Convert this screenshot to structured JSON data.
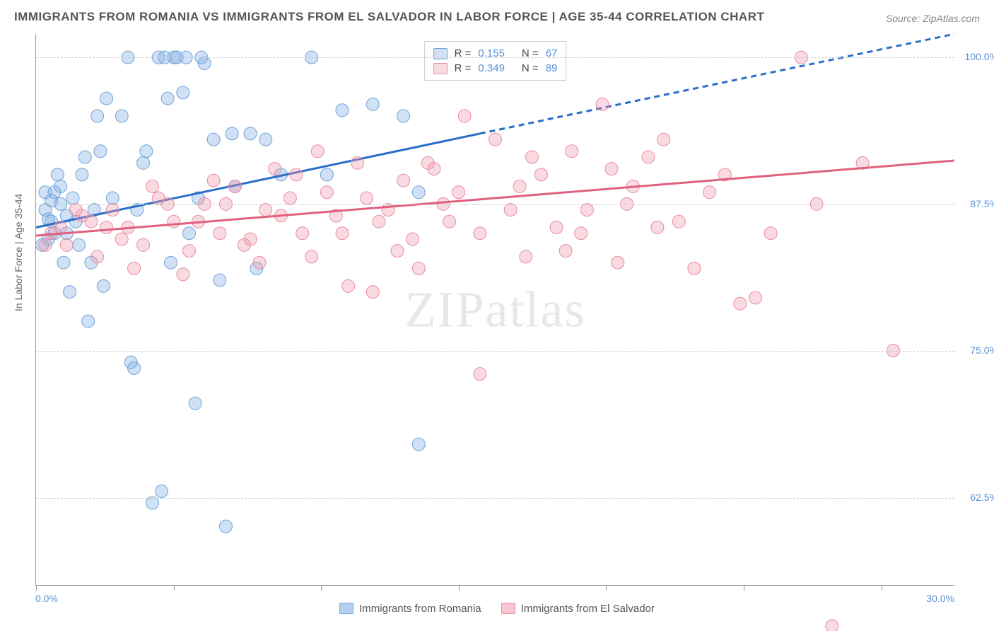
{
  "title": "IMMIGRANTS FROM ROMANIA VS IMMIGRANTS FROM EL SALVADOR IN LABOR FORCE | AGE 35-44 CORRELATION CHART",
  "source": "Source: ZipAtlas.com",
  "watermark": "ZIPatlas",
  "chart": {
    "type": "scatter",
    "background_color": "#ffffff",
    "grid_color": "#cccccc",
    "axis_color": "#999999",
    "tick_label_color": "#5b8fd6",
    "ylabel": "In Labor Force | Age 35-44",
    "ylabel_fontsize": 14,
    "xlim": [
      0.0,
      30.0
    ],
    "ylim": [
      55.0,
      102.0
    ],
    "yticks": [
      62.5,
      75.0,
      87.5,
      100.0
    ],
    "ytick_labels": [
      "62.5%",
      "75.0%",
      "87.5%",
      "100.0%"
    ],
    "xtick_labels": {
      "min": "0.0%",
      "max": "30.0%"
    },
    "bottom_tick_positions_pct": [
      0,
      15,
      31,
      46,
      62,
      77,
      92
    ],
    "series": [
      {
        "name": "Immigrants from Romania",
        "legend_key": "romania",
        "color_fill": "rgba(120,170,225,0.35)",
        "color_stroke": "#6fa3d8",
        "marker_radius": 9,
        "trend": {
          "color": "#2a6ec9",
          "width": 3,
          "x1": 0,
          "y1": 85.5,
          "x2_solid": 14.5,
          "y2_solid": 93.5,
          "x2_dash": 30.0,
          "y2_dash": 102.0
        },
        "R": 0.155,
        "N": 67,
        "points": [
          [
            0.3,
            87.0
          ],
          [
            0.5,
            86.0
          ],
          [
            0.8,
            87.5
          ],
          [
            1.0,
            85.0
          ],
          [
            1.2,
            88.0
          ],
          [
            0.4,
            84.5
          ],
          [
            0.6,
            88.5
          ],
          [
            1.5,
            90.0
          ],
          [
            1.8,
            82.5
          ],
          [
            2.0,
            95.0
          ],
          [
            2.2,
            80.5
          ],
          [
            2.5,
            88.0
          ],
          [
            3.0,
            100.0
          ],
          [
            3.2,
            73.5
          ],
          [
            3.5,
            91.0
          ],
          [
            4.0,
            100.0
          ],
          [
            4.2,
            100.0
          ],
          [
            4.5,
            100.0
          ],
          [
            4.8,
            97.0
          ],
          [
            4.6,
            100.0
          ],
          [
            4.9,
            100.0
          ],
          [
            5.0,
            85.0
          ],
          [
            5.2,
            70.5
          ],
          [
            5.5,
            99.5
          ],
          [
            5.8,
            93.0
          ],
          [
            6.0,
            81.0
          ],
          [
            6.2,
            60.0
          ],
          [
            6.5,
            89.0
          ],
          [
            7.0,
            93.5
          ],
          [
            7.2,
            82.0
          ],
          [
            3.8,
            62.0
          ],
          [
            4.1,
            63.0
          ],
          [
            2.8,
            95.0
          ],
          [
            1.1,
            80.0
          ],
          [
            0.9,
            82.5
          ],
          [
            0.7,
            90.0
          ],
          [
            1.3,
            86.0
          ],
          [
            1.6,
            91.5
          ],
          [
            3.3,
            87.0
          ],
          [
            5.3,
            88.0
          ],
          [
            7.5,
            93.0
          ],
          [
            8.0,
            90.0
          ],
          [
            5.4,
            100.0
          ],
          [
            4.3,
            96.5
          ],
          [
            9.0,
            100.0
          ],
          [
            9.5,
            90.0
          ],
          [
            10.0,
            95.5
          ],
          [
            11.0,
            96.0
          ],
          [
            12.0,
            95.0
          ],
          [
            12.5,
            67.0
          ],
          [
            12.5,
            88.5
          ],
          [
            2.3,
            96.5
          ],
          [
            1.7,
            77.5
          ],
          [
            3.6,
            92.0
          ],
          [
            6.4,
            93.5
          ],
          [
            0.2,
            84.0
          ],
          [
            0.5,
            87.8
          ],
          [
            0.8,
            89.0
          ],
          [
            1.0,
            86.5
          ],
          [
            1.4,
            84.0
          ],
          [
            1.9,
            87.0
          ],
          [
            0.3,
            88.5
          ],
          [
            0.6,
            85.0
          ],
          [
            4.4,
            82.5
          ],
          [
            3.1,
            74.0
          ],
          [
            2.1,
            92.0
          ],
          [
            0.4,
            86.2
          ]
        ]
      },
      {
        "name": "Immigrants from El Salvador",
        "legend_key": "elsalvador",
        "color_fill": "rgba(240,150,170,0.35)",
        "color_stroke": "#e88ba5",
        "marker_radius": 9,
        "trend": {
          "color": "#e0607f",
          "width": 3,
          "x1": 0,
          "y1": 84.8,
          "x2_solid": 30.0,
          "y2_solid": 91.2,
          "x2_dash": 30.0,
          "y2_dash": 91.2
        },
        "R": 0.349,
        "N": 89,
        "points": [
          [
            0.5,
            85.0
          ],
          [
            1.0,
            84.0
          ],
          [
            1.5,
            86.5
          ],
          [
            2.0,
            83.0
          ],
          [
            2.5,
            87.0
          ],
          [
            3.0,
            85.5
          ],
          [
            3.5,
            84.0
          ],
          [
            4.0,
            88.0
          ],
          [
            4.5,
            86.0
          ],
          [
            5.0,
            83.5
          ],
          [
            5.5,
            87.5
          ],
          [
            6.0,
            85.0
          ],
          [
            6.5,
            89.0
          ],
          [
            7.0,
            84.5
          ],
          [
            7.5,
            87.0
          ],
          [
            8.0,
            86.5
          ],
          [
            8.5,
            90.0
          ],
          [
            9.0,
            83.0
          ],
          [
            9.5,
            88.5
          ],
          [
            10.0,
            85.0
          ],
          [
            10.5,
            91.0
          ],
          [
            11.0,
            80.0
          ],
          [
            11.5,
            87.0
          ],
          [
            12.0,
            89.5
          ],
          [
            12.5,
            82.0
          ],
          [
            13.0,
            90.5
          ],
          [
            13.5,
            86.0
          ],
          [
            14.0,
            95.0
          ],
          [
            14.5,
            73.0
          ],
          [
            15.0,
            93.0
          ],
          [
            15.5,
            87.0
          ],
          [
            16.0,
            83.0
          ],
          [
            16.5,
            90.0
          ],
          [
            17.0,
            85.5
          ],
          [
            17.5,
            92.0
          ],
          [
            18.0,
            87.0
          ],
          [
            18.5,
            96.0
          ],
          [
            19.0,
            82.5
          ],
          [
            19.5,
            89.0
          ],
          [
            20.0,
            91.5
          ],
          [
            20.5,
            93.0
          ],
          [
            21.0,
            86.0
          ],
          [
            21.5,
            82.0
          ],
          [
            22.0,
            88.5
          ],
          [
            22.5,
            90.0
          ],
          [
            23.0,
            79.0
          ],
          [
            23.5,
            79.5
          ],
          [
            24.0,
            85.0
          ],
          [
            25.0,
            100.0
          ],
          [
            25.5,
            87.5
          ],
          [
            26.0,
            51.5
          ],
          [
            27.0,
            91.0
          ],
          [
            3.2,
            82.0
          ],
          [
            4.8,
            81.5
          ],
          [
            6.2,
            87.5
          ],
          [
            7.8,
            90.5
          ],
          [
            9.2,
            92.0
          ],
          [
            10.8,
            88.0
          ],
          [
            12.3,
            84.5
          ],
          [
            13.8,
            88.5
          ],
          [
            11.2,
            86.0
          ],
          [
            8.7,
            85.0
          ],
          [
            7.3,
            82.5
          ],
          [
            5.8,
            89.5
          ],
          [
            4.3,
            87.5
          ],
          [
            2.8,
            84.5
          ],
          [
            1.8,
            86.0
          ],
          [
            0.8,
            85.5
          ],
          [
            0.3,
            84.0
          ],
          [
            14.5,
            85.0
          ],
          [
            16.2,
            91.5
          ],
          [
            17.8,
            85.0
          ],
          [
            19.3,
            87.5
          ],
          [
            10.2,
            80.5
          ],
          [
            12.8,
            91.0
          ],
          [
            9.8,
            86.5
          ],
          [
            8.3,
            88.0
          ],
          [
            6.8,
            84.0
          ],
          [
            5.3,
            86.0
          ],
          [
            3.8,
            89.0
          ],
          [
            2.3,
            85.5
          ],
          [
            1.3,
            87.0
          ],
          [
            11.8,
            83.5
          ],
          [
            13.3,
            87.5
          ],
          [
            15.8,
            89.0
          ],
          [
            17.3,
            83.5
          ],
          [
            18.8,
            90.5
          ],
          [
            20.3,
            85.5
          ],
          [
            28.0,
            75.0
          ]
        ]
      }
    ],
    "legend_top": {
      "r_label": "R",
      "n_label": "N",
      "eq": "="
    },
    "legend_bottom": [
      {
        "label": "Immigrants from Romania",
        "fill": "rgba(120,170,225,0.55)",
        "stroke": "#6fa3d8"
      },
      {
        "label": "Immigrants from El Salvador",
        "fill": "rgba(240,150,170,0.55)",
        "stroke": "#e88ba5"
      }
    ]
  }
}
